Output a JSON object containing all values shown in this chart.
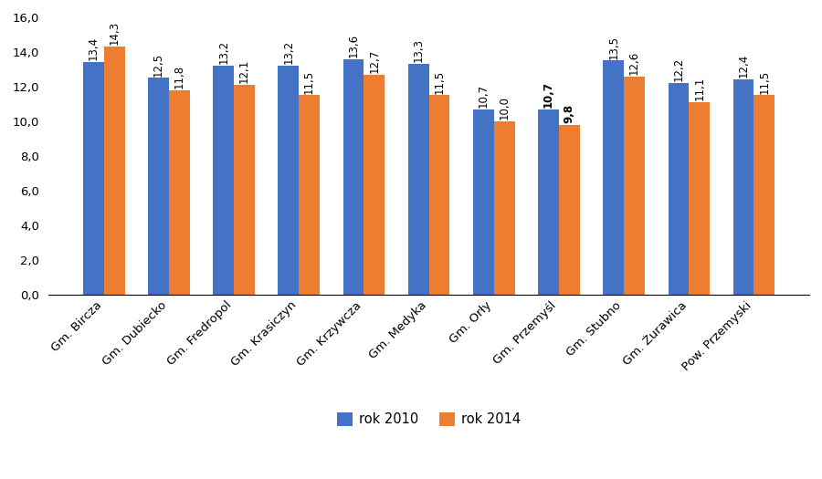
{
  "categories": [
    "Gm. Bircza",
    "Gm. Dubiecko",
    "Gm. Fredropol",
    "Gm. Krasiczyn",
    "Gm. Krzywcza",
    "Gm. Medyka",
    "Gm. Orły",
    "Gm. Przemyśl",
    "Gm. Stubno",
    "Gm. Żurawica",
    "Pow. Przemyski"
  ],
  "rok2010": [
    13.4,
    12.5,
    13.2,
    13.2,
    13.6,
    13.3,
    10.7,
    10.7,
    13.5,
    12.2,
    12.4
  ],
  "rok2014": [
    14.3,
    11.8,
    12.1,
    11.5,
    12.7,
    11.5,
    10.0,
    9.8,
    12.6,
    11.1,
    11.5
  ],
  "bold_indices_2010": [
    7
  ],
  "bold_indices_2014": [
    7
  ],
  "color_2010": "#4472C4",
  "color_2014": "#ED7D31",
  "ylim": [
    0,
    16
  ],
  "yticks": [
    0.0,
    2.0,
    4.0,
    6.0,
    8.0,
    10.0,
    12.0,
    14.0,
    16.0
  ],
  "legend_labels": [
    "rok 2010",
    "rok 2014"
  ],
  "bar_width": 0.32,
  "label_fontsize": 8.5,
  "tick_fontsize": 9.5,
  "legend_fontsize": 10.5
}
